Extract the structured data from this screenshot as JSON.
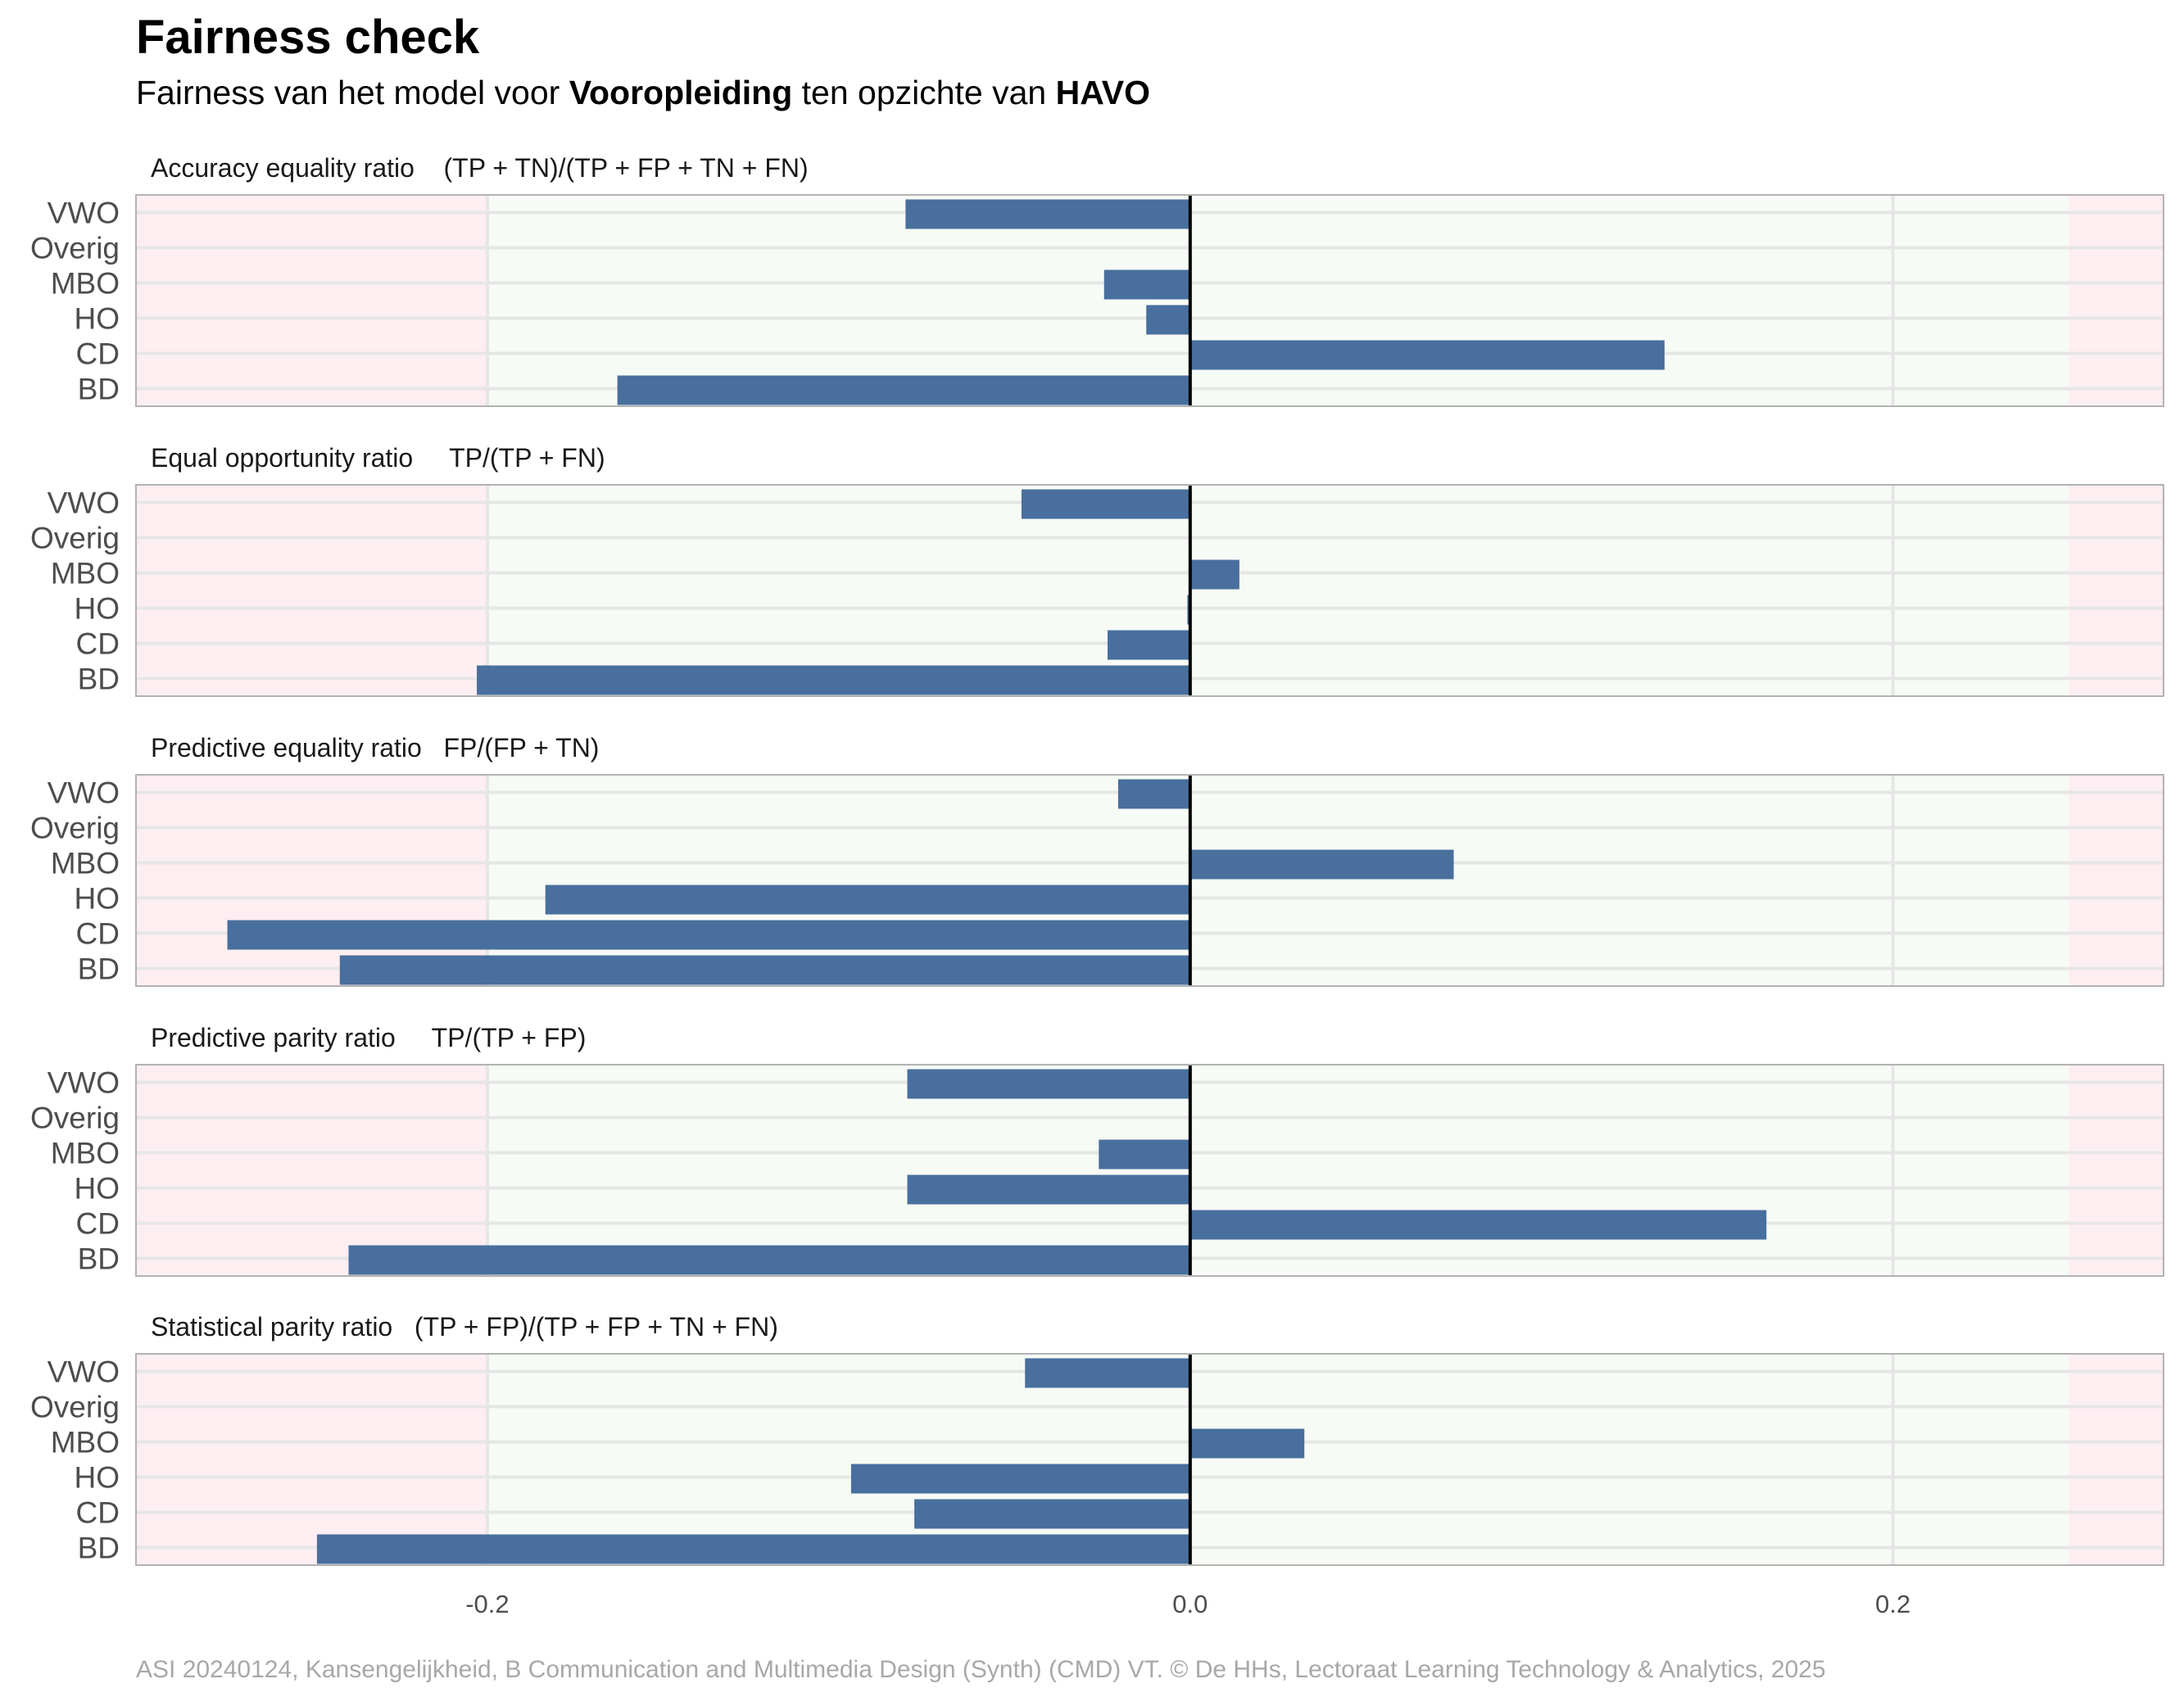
{
  "title": "Fairness check",
  "subtitle": {
    "part1": "Fairness van het model voor ",
    "group_variable": "Vooropleiding",
    "part2": " ten opzichte van ",
    "reference": "HAVO"
  },
  "caption": "ASI 20240124, Kansengelijkheid, B Communication and Multimedia Design (Synth) (CMD) VT. © De HHs, Lectoraat Learning Technology & Analytics, 2025",
  "colors": {
    "bar": "#486f9d",
    "fair_zone": "#f7fbf6",
    "unfair_zone": "#fdeef1",
    "zero_line": "#000000",
    "grid": "#e6e6e6",
    "panel_border": "#b3b3b3"
  },
  "chart_data": {
    "type": "bar",
    "orientation": "horizontal",
    "categories": [
      "VWO",
      "Overig",
      "MBO",
      "HO",
      "CD",
      "BD"
    ],
    "x_ticks": [
      {
        "value": -0.2,
        "label": "-0.2"
      },
      {
        "value": 0.0,
        "label": "0.0"
      },
      {
        "value": 0.2,
        "label": "0.2"
      }
    ],
    "xlim": [
      -0.3,
      0.277
    ],
    "fair_range": [
      -0.2,
      0.25
    ],
    "panels": [
      {
        "title": "Accuracy equality ratio    (TP + TN)/(TP + FP + TN + FN)",
        "values": {
          "VWO": -0.081,
          "Overig": 0.0,
          "MBO": -0.0245,
          "HO": -0.0125,
          "CD": 0.135,
          "BD": -0.163
        }
      },
      {
        "title": "Equal opportunity ratio     TP/(TP + FN)",
        "values": {
          "VWO": -0.048,
          "Overig": 0.0,
          "MBO": 0.014,
          "HO": -0.0008,
          "CD": -0.0235,
          "BD": -0.203
        }
      },
      {
        "title": "Predictive equality ratio   FP/(FP + TN)",
        "values": {
          "VWO": -0.0205,
          "Overig": 0.0,
          "MBO": 0.075,
          "HO": -0.1835,
          "CD": -0.274,
          "BD": -0.242
        }
      },
      {
        "title": "Predictive parity ratio     TP/(TP + FP)",
        "values": {
          "VWO": -0.0805,
          "Overig": 0.0,
          "MBO": -0.026,
          "HO": -0.0805,
          "CD": 0.164,
          "BD": -0.2395
        }
      },
      {
        "title": "Statistical parity ratio   (TP + FP)/(TP + FP + TN + FN)",
        "values": {
          "VWO": -0.047,
          "Overig": 0.0,
          "MBO": 0.0325,
          "HO": -0.0965,
          "CD": -0.0785,
          "BD": -0.2485
        }
      }
    ]
  }
}
